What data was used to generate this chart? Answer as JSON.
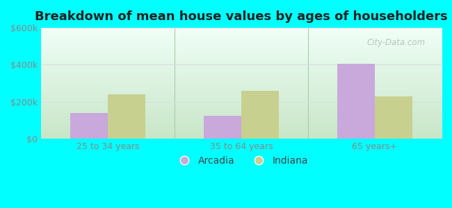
{
  "title": "Breakdown of mean house values by ages of householders",
  "categories": [
    "25 to 34 years",
    "35 to 64 years",
    "65 years+"
  ],
  "arcadia_values": [
    140000,
    125000,
    407000
  ],
  "indiana_values": [
    242000,
    258000,
    228000
  ],
  "arcadia_color": "#c9a8dc",
  "indiana_color": "#c8d090",
  "ylim": [
    0,
    600000
  ],
  "yticks": [
    0,
    200000,
    400000,
    600000
  ],
  "ytick_labels": [
    "$0",
    "$200k",
    "$400k",
    "$600k"
  ],
  "legend_labels": [
    "Arcadia",
    "Indiana"
  ],
  "bar_width": 0.28,
  "background_color": "#00ffff",
  "plot_bg_color_top": "#f0fff8",
  "plot_bg_color_bottom": "#d8f0d8",
  "title_fontsize": 13,
  "tick_fontsize": 9,
  "legend_fontsize": 10,
  "watermark_text": "City-Data.com",
  "grid_color": "#dddddd",
  "tick_color": "#888888",
  "divider_color": "#aaccaa"
}
